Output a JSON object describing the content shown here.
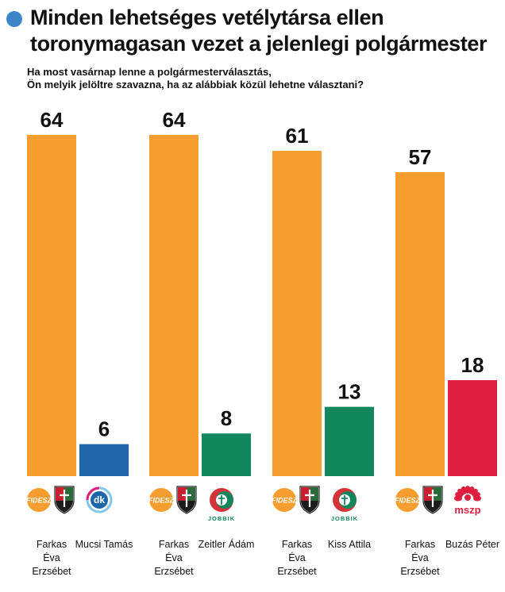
{
  "header": {
    "title_line1": "Minden lehetséges vetélytársa ellen",
    "title_line2": "toronymagasan vezet a jelenlegi polgármester",
    "subtitle_line1": "Ha most vasárnap lenne a polgármesterválasztás,",
    "subtitle_line2": "Ön melyik jelöltre szavazna, ha az alábbiak közül lehetne választani?"
  },
  "colors": {
    "accent_dot": "#3a86c8",
    "fidesz": "#f59d2f",
    "dk": "#1f66a8",
    "jobbik": "#12875e",
    "mszp": "#df1f3f"
  },
  "chart_data": {
    "type": "bar",
    "title": "Minden lehetséges vetélytársa ellen toronymagasan vezet a jelenlegi polgármester",
    "ylim": [
      0,
      100
    ],
    "grid": false,
    "groups": [
      {
        "bars": [
          {
            "candidate": "Farkas Éva Erzsébet",
            "candidate_lines": [
              "Farkas",
              "Éva",
              "Erzsébet"
            ],
            "party": "FIDESZ",
            "value": 64,
            "color": "#f59d2f"
          },
          {
            "candidate": "Mucsi Tamás",
            "candidate_lines": [
              "Mucsi Tamás"
            ],
            "party": "dk",
            "value": 6,
            "color": "#1f66a8"
          }
        ]
      },
      {
        "bars": [
          {
            "candidate": "Farkas Éva Erzsébet",
            "candidate_lines": [
              "Farkas",
              "Éva",
              "Erzsébet"
            ],
            "party": "FIDESZ",
            "value": 64,
            "color": "#f59d2f"
          },
          {
            "candidate": "Zeitler Ádám",
            "candidate_lines": [
              "Zeitler Ádám"
            ],
            "party": "JOBBIK",
            "value": 8,
            "color": "#12875e"
          }
        ]
      },
      {
        "bars": [
          {
            "candidate": "Farkas Éva Erzsébet",
            "candidate_lines": [
              "Farkas",
              "Éva",
              "Erzsébet"
            ],
            "party": "FIDESZ",
            "value": 61,
            "color": "#f59d2f"
          },
          {
            "candidate": "Kiss Attila",
            "candidate_lines": [
              "Kiss Attila"
            ],
            "party": "JOBBIK",
            "value": 13,
            "color": "#12875e"
          }
        ]
      },
      {
        "bars": [
          {
            "candidate": "Farkas Éva Erzsébet",
            "candidate_lines": [
              "Farkas",
              "Éva",
              "Erzsébet"
            ],
            "party": "FIDESZ",
            "value": 57,
            "color": "#f59d2f"
          },
          {
            "candidate": "Buzás Péter",
            "candidate_lines": [
              "Buzás Péter"
            ],
            "party": "mszp",
            "value": 18,
            "color": "#df1f3f"
          }
        ]
      }
    ]
  }
}
